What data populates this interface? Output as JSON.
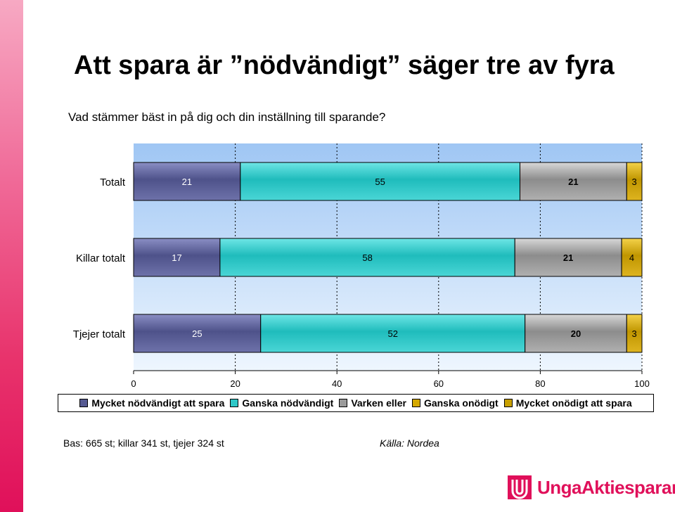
{
  "title": "Att spara är ”nödvändigt” säger tre av fyra",
  "subtitle": "Vad stämmer bäst in på dig och din inställning till sparande?",
  "chart_data": {
    "type": "bar",
    "orientation": "horizontal",
    "stacked": true,
    "categories": [
      "Totalt",
      "Killar totalt",
      "Tjejer totalt"
    ],
    "series": [
      {
        "name": "Mycket nödvändigt att spara",
        "values": [
          21,
          17,
          25
        ],
        "color": "#565a92"
      },
      {
        "name": "Ganska nödvändigt",
        "values": [
          55,
          58,
          52
        ],
        "color": "#2ec8c8"
      },
      {
        "name": "Varken eller",
        "values": [
          21,
          21,
          20
        ],
        "color": "#9a9a9a"
      },
      {
        "name": "Ganska onödigt",
        "values": [
          3,
          4,
          3
        ],
        "color": "#d4a800"
      },
      {
        "name": "Mycket onödigt att spara",
        "values": [
          0,
          0,
          0
        ],
        "color": "#c8a000"
      }
    ],
    "xlim": [
      0,
      100
    ],
    "xticks": [
      "0",
      "20",
      "40",
      "60",
      "80",
      "100"
    ],
    "grid": true,
    "legend_position": "bottom"
  },
  "footnote": {
    "bas": "Bas: 665 st; killar 341 st, tjejer 324 st",
    "source": "Källa: Nordea"
  },
  "logo": {
    "text": "UngaAktiesparare"
  }
}
